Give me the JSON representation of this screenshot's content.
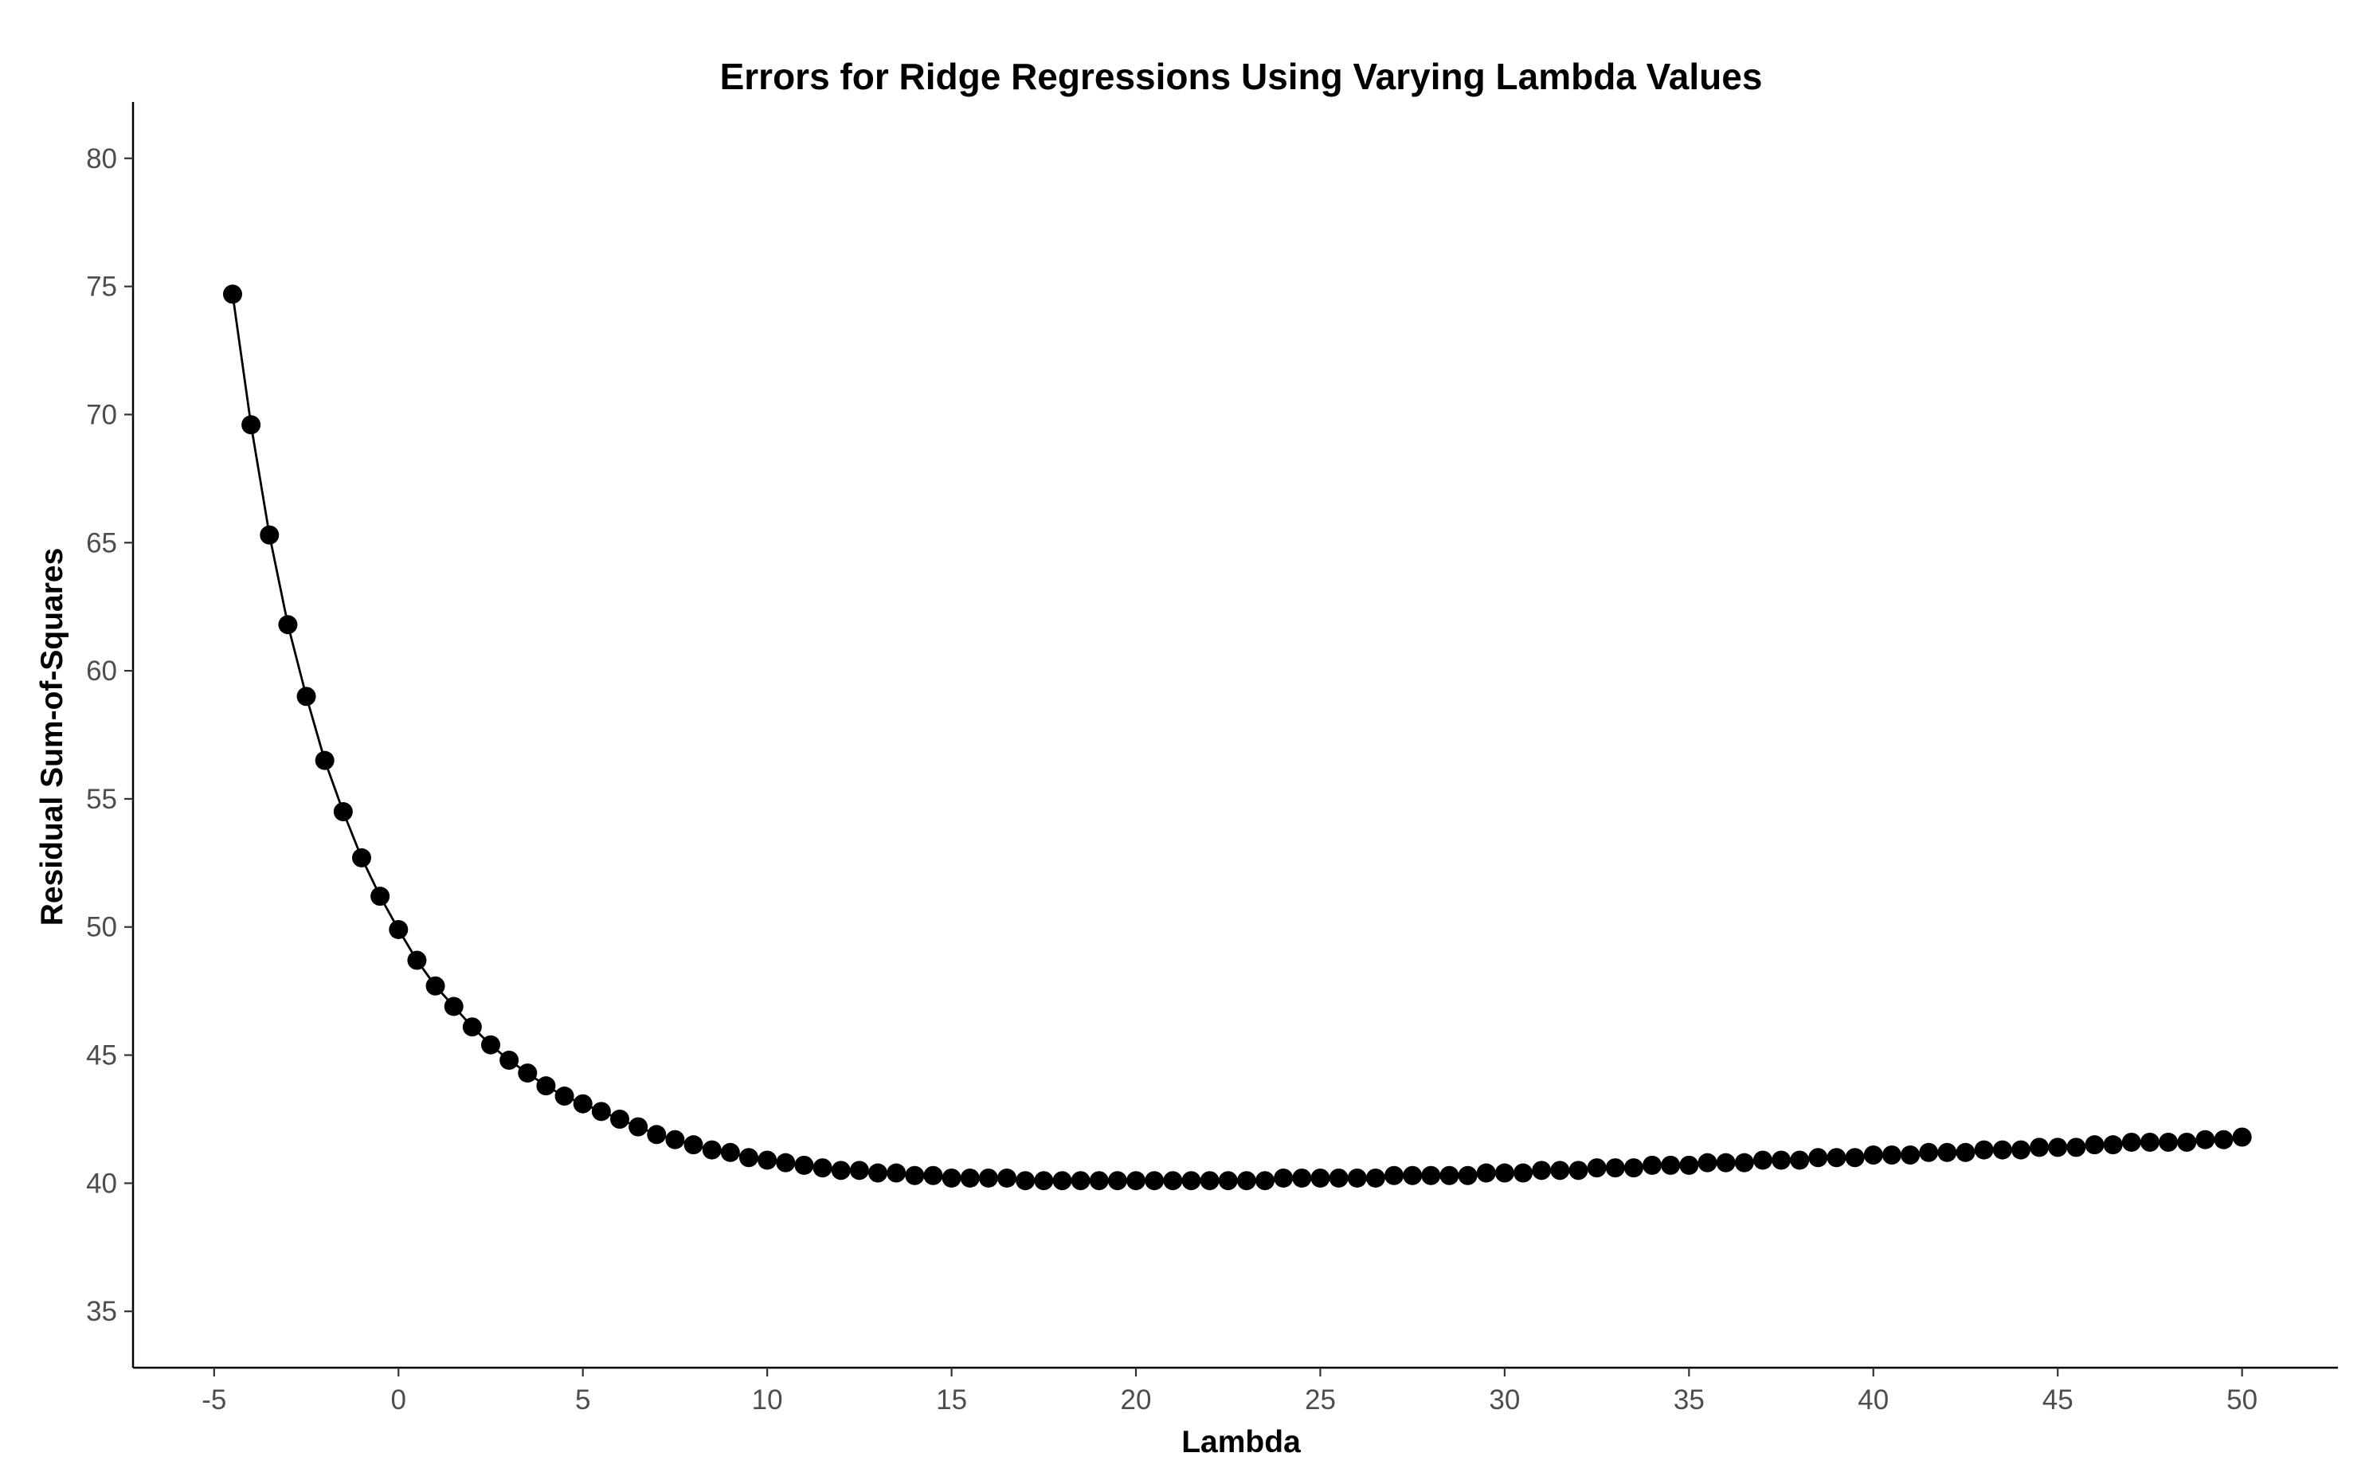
{
  "chart_data": {
    "type": "line",
    "title": "Errors for Ridge Regressions Using Varying Lambda Values",
    "xlabel": "Lambda",
    "ylabel": "Residual Sum-of-Squares",
    "xlim": [
      -7.2,
      52.6
    ],
    "ylim": [
      32.8,
      82.2
    ],
    "x_ticks": [
      -5,
      0,
      5,
      10,
      15,
      20,
      25,
      30,
      35,
      40,
      45,
      50
    ],
    "x_tick_labels": [
      "-5",
      "0",
      "5",
      "10",
      "15",
      "20",
      "25",
      "30",
      "35",
      "40",
      "45",
      "50"
    ],
    "y_ticks": [
      35,
      40,
      45,
      50,
      55,
      60,
      65,
      70,
      75,
      80
    ],
    "y_tick_labels": [
      "35",
      "40",
      "45",
      "50",
      "55",
      "60",
      "65",
      "70",
      "75",
      "80"
    ],
    "grid": false,
    "colors": {
      "line": "#000000",
      "points": "#000000",
      "tick_labels": "#4d4d4d",
      "background": "#ffffff"
    },
    "x": [
      -4.5,
      -4.0,
      -3.5,
      -3.0,
      -2.5,
      -2.0,
      -1.5,
      -1.0,
      -0.5,
      0.0,
      0.5,
      1.0,
      1.5,
      2.0,
      2.5,
      3.0,
      3.5,
      4.0,
      4.5,
      5.0,
      5.5,
      6.0,
      6.5,
      7.0,
      7.5,
      8.0,
      8.5,
      9.0,
      9.5,
      10.0,
      10.5,
      11.0,
      11.5,
      12.0,
      12.5,
      13.0,
      13.5,
      14.0,
      14.5,
      15.0,
      15.5,
      16.0,
      16.5,
      17.0,
      17.5,
      18.0,
      18.5,
      19.0,
      19.5,
      20.0,
      20.5,
      21.0,
      21.5,
      22.0,
      22.5,
      23.0,
      23.5,
      24.0,
      24.5,
      25.0,
      25.5,
      26.0,
      26.5,
      27.0,
      27.5,
      28.0,
      28.5,
      29.0,
      29.5,
      30.0,
      30.5,
      31.0,
      31.5,
      32.0,
      32.5,
      33.0,
      33.5,
      34.0,
      34.5,
      35.0,
      35.5,
      36.0,
      36.5,
      37.0,
      37.5,
      38.0,
      38.5,
      39.0,
      39.5,
      40.0,
      40.5,
      41.0,
      41.5,
      42.0,
      42.5,
      43.0,
      43.5,
      44.0,
      44.5,
      45.0,
      45.5,
      46.0,
      46.5,
      47.0,
      47.5,
      48.0,
      48.5,
      49.0,
      49.5,
      50.0
    ],
    "series": [
      {
        "values": [
          74.7,
          69.6,
          65.3,
          61.8,
          59.0,
          56.5,
          54.5,
          52.7,
          51.2,
          49.9,
          48.7,
          47.7,
          46.9,
          46.1,
          45.4,
          44.8,
          44.3,
          43.8,
          43.4,
          43.1,
          42.8,
          42.5,
          42.2,
          41.9,
          41.7,
          41.5,
          41.3,
          41.2,
          41.0,
          40.9,
          40.8,
          40.7,
          40.6,
          40.5,
          40.5,
          40.4,
          40.4,
          40.3,
          40.3,
          40.2,
          40.2,
          40.2,
          40.2,
          40.1,
          40.1,
          40.1,
          40.1,
          40.1,
          40.1,
          40.1,
          40.1,
          40.1,
          40.1,
          40.1,
          40.1,
          40.1,
          40.1,
          40.2,
          40.2,
          40.2,
          40.2,
          40.2,
          40.2,
          40.3,
          40.3,
          40.3,
          40.3,
          40.3,
          40.4,
          40.4,
          40.4,
          40.5,
          40.5,
          40.5,
          40.6,
          40.6,
          40.6,
          40.7,
          40.7,
          40.7,
          40.8,
          40.8,
          40.8,
          40.9,
          40.9,
          40.9,
          41.0,
          41.0,
          41.0,
          41.1,
          41.1,
          41.1,
          41.2,
          41.2,
          41.2,
          41.3,
          41.3,
          41.3,
          41.4,
          41.4,
          41.4,
          41.5,
          41.5,
          41.6,
          41.6,
          41.6,
          41.6,
          41.7,
          41.7,
          41.8
        ]
      }
    ]
  }
}
